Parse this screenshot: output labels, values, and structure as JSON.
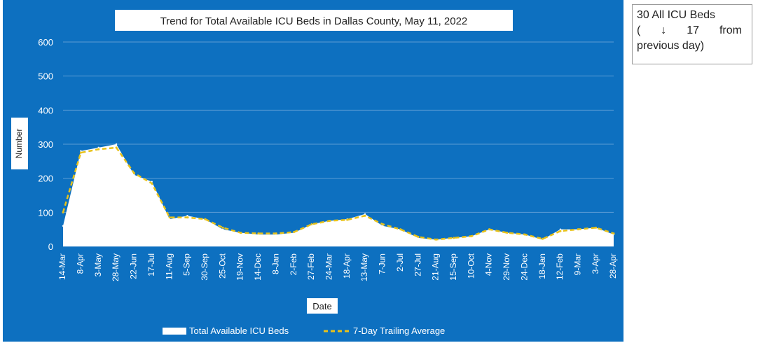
{
  "chart_data": {
    "type": "area",
    "title": "Trend for Total Available ICU Beds in Dallas County, May 11, 2022",
    "xlabel": "Date",
    "ylabel": "Number",
    "ylim": [
      0,
      600
    ],
    "yticks": [
      0,
      100,
      200,
      300,
      400,
      500,
      600
    ],
    "grid": "horizontal",
    "legend_position": "bottom",
    "x_tick_labels": [
      "14-Mar",
      "8-Apr",
      "3-May",
      "28-May",
      "22-Jun",
      "17-Jul",
      "11-Aug",
      "5-Sep",
      "30-Sep",
      "25-Oct",
      "19-Nov",
      "14-Dec",
      "8-Jan",
      "2-Feb",
      "27-Feb",
      "24-Mar",
      "18-Apr",
      "13-May",
      "7-Jun",
      "2-Jul",
      "27-Jul",
      "21-Aug",
      "15-Sep",
      "10-Oct",
      "4-Nov",
      "29-Nov",
      "24-Dec",
      "18-Jan",
      "12-Feb",
      "9-Mar",
      "3-Apr",
      "28-Apr"
    ],
    "series": [
      {
        "name": "Total Available ICU Beds",
        "kind": "area",
        "color": "#ffffff",
        "x": [
          "14-Mar",
          "8-Apr",
          "3-May",
          "28-May",
          "22-Jun",
          "17-Jul",
          "11-Aug",
          "5-Sep",
          "30-Sep",
          "25-Oct",
          "19-Nov",
          "14-Dec",
          "8-Jan",
          "2-Feb",
          "27-Feb",
          "24-Mar",
          "18-Apr",
          "13-May",
          "7-Jun",
          "2-Jul",
          "27-Jul",
          "21-Aug",
          "15-Sep",
          "10-Oct",
          "4-Nov",
          "29-Nov",
          "24-Dec",
          "18-Jan",
          "12-Feb",
          "9-Mar",
          "3-Apr",
          "28-Apr"
        ],
        "values": [
          60,
          280,
          290,
          300,
          210,
          190,
          80,
          90,
          80,
          50,
          40,
          35,
          35,
          40,
          65,
          75,
          80,
          95,
          60,
          50,
          25,
          20,
          25,
          30,
          50,
          40,
          35,
          20,
          50,
          50,
          55,
          35
        ]
      },
      {
        "name": "7-Day Trailing Average",
        "kind": "dashed-line",
        "color": "#e8c21a",
        "x": [
          "14-Mar",
          "8-Apr",
          "3-May",
          "28-May",
          "22-Jun",
          "17-Jul",
          "11-Aug",
          "5-Sep",
          "30-Sep",
          "25-Oct",
          "19-Nov",
          "14-Dec",
          "8-Jan",
          "2-Feb",
          "27-Feb",
          "24-Mar",
          "18-Apr",
          "13-May",
          "7-Jun",
          "2-Jul",
          "27-Jul",
          "21-Aug",
          "15-Sep",
          "10-Oct",
          "4-Nov",
          "29-Nov",
          "24-Dec",
          "18-Jan",
          "12-Feb",
          "9-Mar",
          "3-Apr",
          "28-Apr"
        ],
        "values": [
          100,
          275,
          285,
          290,
          215,
          185,
          85,
          85,
          80,
          55,
          40,
          38,
          38,
          42,
          65,
          75,
          78,
          90,
          65,
          50,
          28,
          20,
          25,
          30,
          50,
          40,
          35,
          22,
          45,
          50,
          55,
          38
        ]
      }
    ]
  },
  "annotation": {
    "line1": "30 All ICU Beds",
    "open_paren": "(",
    "arrow": "↓",
    "change_value": "17",
    "from_text": "from",
    "line3": "previous day)"
  },
  "colors": {
    "panel_background": "#0d70c0",
    "area_fill": "#ffffff",
    "average_line": "#e8c21a",
    "gridline": "#5b9bd5"
  }
}
